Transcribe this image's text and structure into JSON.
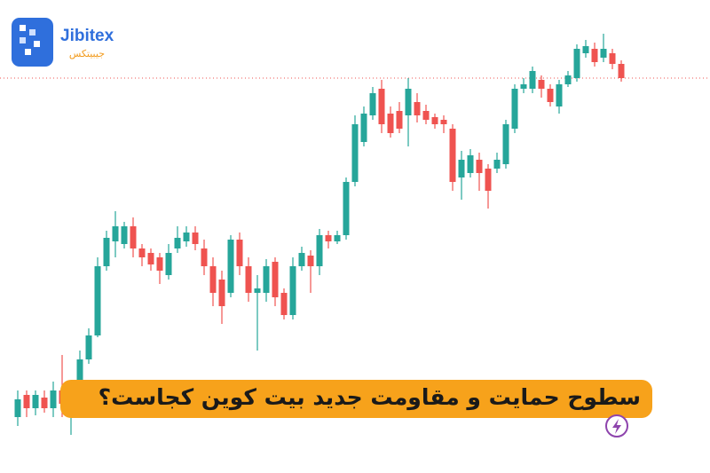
{
  "logo": {
    "name": "Jibitex",
    "name_fa": "جیبیتکس"
  },
  "chart_data": {
    "type": "candlestick",
    "title": "سطوح حمایت و مقاومت جدید بیت کوین کجاست؟",
    "up_color": "#26a69a",
    "down_color": "#ef5350",
    "ylim": [
      0,
      533
    ],
    "price_line": 445,
    "open": [
      63,
      88,
      73,
      85,
      73,
      93,
      63,
      93,
      128,
      155,
      233,
      261,
      258,
      278,
      253,
      248,
      243,
      223,
      253,
      261,
      271,
      253,
      233,
      218,
      203,
      263,
      233,
      203,
      203,
      238,
      203,
      178,
      233,
      245,
      233,
      268,
      261,
      268,
      328,
      373,
      403,
      433,
      405,
      408,
      403,
      418,
      408,
      401,
      398,
      388,
      333,
      338,
      353,
      343,
      343,
      348,
      388,
      433,
      433,
      443,
      433,
      413,
      438,
      445,
      473,
      478,
      468,
      473,
      461
    ],
    "high": [
      93,
      93,
      93,
      93,
      103,
      133,
      103,
      138,
      163,
      243,
      273,
      295,
      283,
      288,
      258,
      253,
      248,
      258,
      278,
      278,
      278,
      263,
      243,
      228,
      268,
      271,
      243,
      223,
      241,
      243,
      208,
      243,
      255,
      251,
      275,
      273,
      273,
      333,
      403,
      413,
      435,
      443,
      413,
      418,
      445,
      428,
      415,
      405,
      403,
      393,
      363,
      365,
      361,
      348,
      361,
      398,
      438,
      445,
      458,
      448,
      438,
      443,
      453,
      483,
      488,
      485,
      495,
      478,
      465
    ],
    "low": [
      53,
      63,
      65,
      68,
      63,
      63,
      43,
      88,
      123,
      153,
      228,
      243,
      253,
      243,
      233,
      228,
      213,
      218,
      248,
      255,
      251,
      223,
      188,
      168,
      198,
      223,
      193,
      138,
      193,
      188,
      173,
      173,
      228,
      203,
      223,
      253,
      258,
      263,
      323,
      368,
      398,
      383,
      378,
      383,
      368,
      395,
      393,
      388,
      383,
      318,
      308,
      333,
      318,
      298,
      338,
      343,
      383,
      428,
      428,
      423,
      413,
      405,
      435,
      441,
      468,
      458,
      463,
      455,
      441
    ],
    "close": [
      83,
      73,
      88,
      73,
      93,
      78,
      93,
      128,
      155,
      233,
      265,
      278,
      278,
      253,
      243,
      235,
      228,
      248,
      265,
      271,
      258,
      233,
      203,
      188,
      263,
      233,
      203,
      208,
      233,
      198,
      178,
      233,
      248,
      233,
      268,
      261,
      268,
      328,
      393,
      405,
      428,
      393,
      383,
      388,
      433,
      403,
      398,
      393,
      393,
      328,
      353,
      358,
      338,
      318,
      353,
      393,
      433,
      438,
      453,
      433,
      418,
      438,
      448,
      478,
      481,
      463,
      478,
      461,
      445
    ]
  }
}
